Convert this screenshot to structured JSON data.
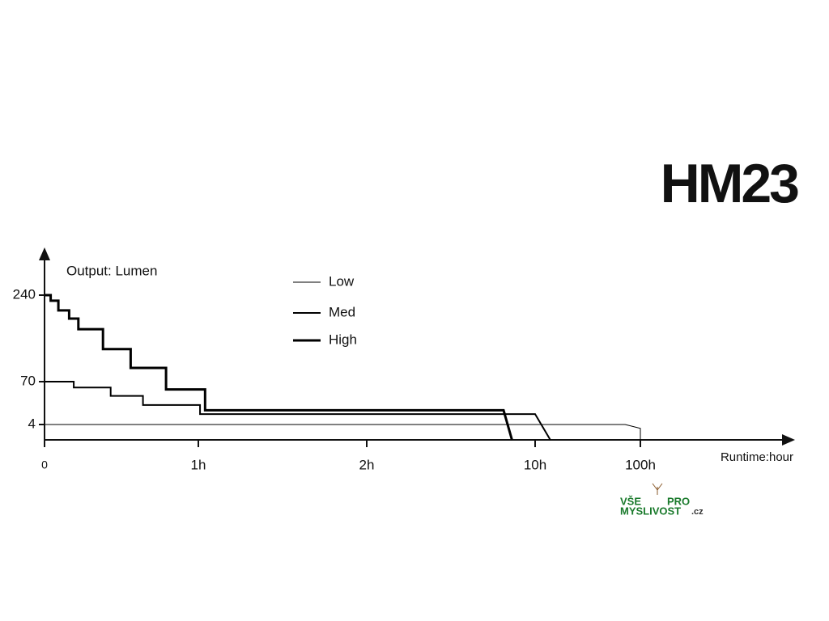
{
  "chart_data": {
    "type": "line",
    "title": "HM23",
    "ylabel": "Output: Lumen",
    "xlabel": "Runtime:hour",
    "xlim": [
      0,
      100
    ],
    "xticks": [
      0,
      {
        "value": 1,
        "label": "1h"
      },
      {
        "value": 2,
        "label": "2h"
      },
      {
        "value": 10,
        "label": "10h"
      },
      {
        "value": 100,
        "label": "100h"
      }
    ],
    "ylim": [
      0,
      240
    ],
    "yticks": [
      4,
      70,
      240
    ],
    "series": [
      {
        "name": "Low",
        "color": "#000000",
        "line_width": 1,
        "x": [
          0,
          87,
          100,
          100
        ],
        "values": [
          4,
          4,
          3,
          0
        ]
      },
      {
        "name": "Med",
        "color": "#000000",
        "line_width": 2,
        "x": [
          0,
          0.19,
          0.19,
          0.43,
          0.43,
          0.64,
          0.64,
          1.01,
          1.01,
          10,
          23
        ],
        "values": [
          70,
          70,
          61,
          61,
          48,
          48,
          34,
          34,
          20,
          20,
          0
        ]
      },
      {
        "name": "High",
        "color": "#000000",
        "line_width": 3,
        "x": [
          0,
          0.04,
          0.04,
          0.09,
          0.09,
          0.16,
          0.16,
          0.22,
          0.22,
          0.38,
          0.38,
          0.56,
          0.56,
          0.79,
          0.79,
          1.04,
          1.04,
          8.5,
          8.9
        ],
        "values": [
          240,
          240,
          229,
          229,
          210,
          210,
          194,
          194,
          173,
          173,
          134,
          134,
          97,
          97,
          58,
          58,
          26,
          26,
          0
        ]
      }
    ]
  },
  "logo": {
    "line1_left": "VŠE",
    "line1_right": "PRO",
    "line2": "MYSLIVOST",
    "suffix": ".cz"
  }
}
